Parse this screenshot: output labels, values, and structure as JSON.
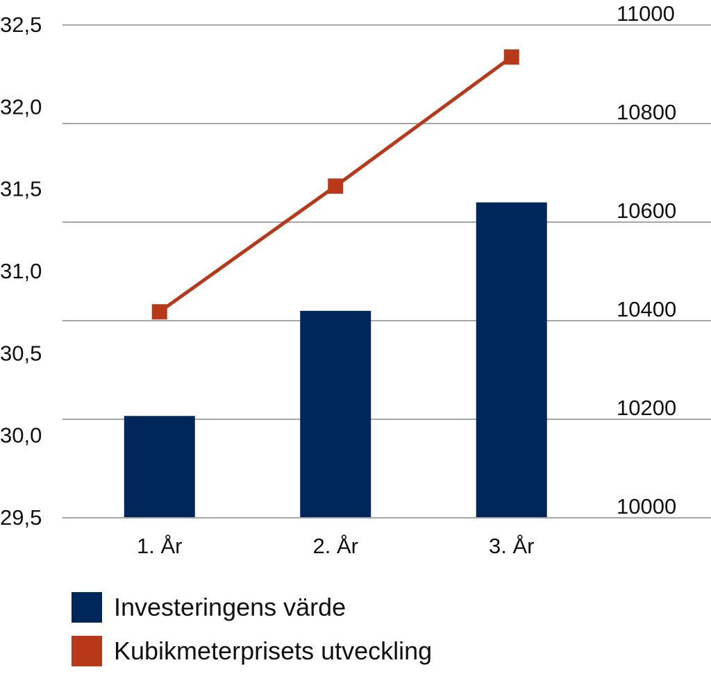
{
  "chart_data": {
    "type": "bar+line",
    "categories": [
      "1. År",
      "2. År",
      "3. År"
    ],
    "series": [
      {
        "name": "Investeringens värde",
        "type": "bar",
        "axis": "left",
        "color": "#00275a",
        "values": [
          30.12,
          30.76,
          31.42
        ]
      },
      {
        "name": "Kubikmeterprisets utveckling",
        "type": "line",
        "axis": "right",
        "color": "#b7391a",
        "values": [
          10418,
          10673,
          10935
        ]
      }
    ],
    "left_axis": {
      "ylim": [
        29.5,
        32.5
      ],
      "ticks": [
        "29,5",
        "30,0",
        "30,5",
        "31,0",
        "31,5",
        "32,0",
        "32,5"
      ]
    },
    "right_axis": {
      "ylim": [
        10000,
        11000
      ],
      "ticks": [
        "10000",
        "10200",
        "10400",
        "10600",
        "10800",
        "11000"
      ]
    },
    "grid": true,
    "legend": "bottom",
    "title": "",
    "xlabel": "",
    "ylabel": ""
  }
}
